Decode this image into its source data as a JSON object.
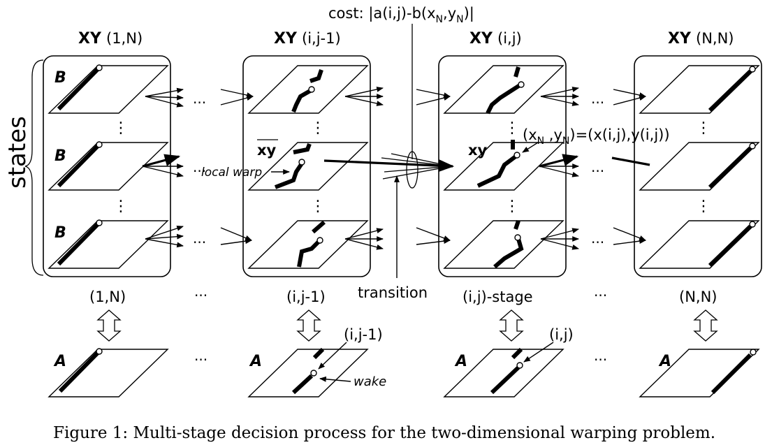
{
  "columns": [
    {
      "header": "XY",
      "index": "(1,N)",
      "stage": "(1,N)"
    },
    {
      "header": "XY",
      "index": "(i,j-1)",
      "stage": "(i,j-1)"
    },
    {
      "header": "XY",
      "index": "(i,j)",
      "stage": "(i,j)-stage"
    },
    {
      "header": "XY",
      "index": "(N,N)",
      "stage": "(N,N)"
    }
  ],
  "ellipsis": "...",
  "vdots": "⋮",
  "states_label": "states",
  "row_label": "B",
  "bottom_label": "A",
  "labels": {
    "cost": "cost: |a(i,j)-b(x",
    "cost_mid": ",y",
    "cost_end": ")|",
    "sub_N": "N",
    "xy_bar": "xy",
    "xy": "xy",
    "local_warp": "local warp",
    "transition": "transition",
    "coord_x": "(x",
    "coord_mid": " ,y",
    "coord_end": ")=(x(i,j),y(i,j))",
    "wake": "wake",
    "pointer_ij1": "(i,j-1)",
    "pointer_ij": "(i,j)"
  },
  "caption": "Figure 1: Multi-stage decision process for the two-dimensional warping problem."
}
